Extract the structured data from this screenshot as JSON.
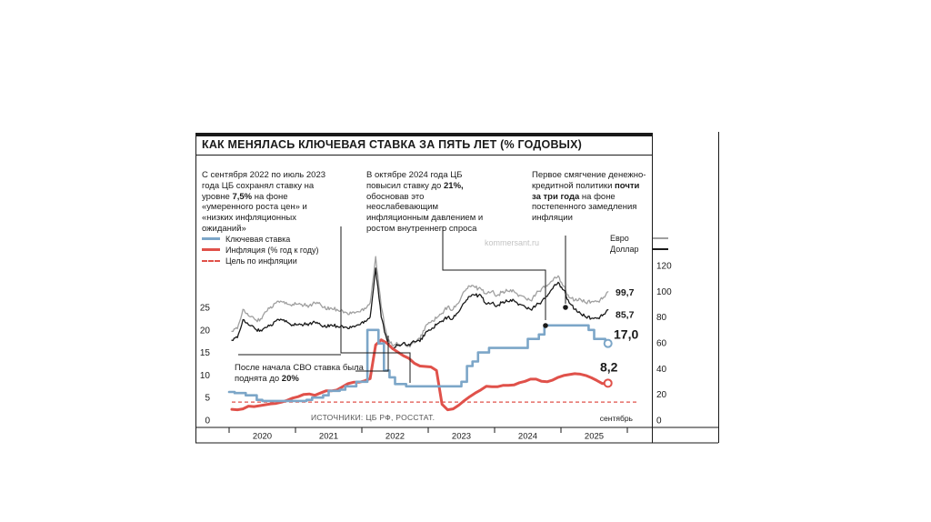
{
  "page": {
    "watermark": "kommersant.ru"
  },
  "header": {
    "title": "КАК МЕНЯЛАСЬ КЛЮЧЕВАЯ СТАВКА ЗА ПЯТЬ ЛЕТ (% ГОДОВЫХ)"
  },
  "annotations": {
    "note1": [
      {
        "t": "С сентября 2022 по июль 2023 года ЦБ сохранял ставку на уровне ",
        "b": false
      },
      {
        "t": "7,5%",
        "b": true
      },
      {
        "t": " на фоне «умеренного роста цен» и «низких инфляционных ожиданий»",
        "b": false
      }
    ],
    "note2": [
      {
        "t": "В октябре 2024 года ЦБ повысил ставку до ",
        "b": false
      },
      {
        "t": "21%,",
        "b": true
      },
      {
        "t": " обосновав это неослабевающим инфляционным давлением и ростом внутреннего спроса",
        "b": false
      }
    ],
    "note3": [
      {
        "t": "Первое смягчение денежно-кредитной политики ",
        "b": false
      },
      {
        "t": "почти за три года",
        "b": true
      },
      {
        "t": " на фоне постепенного замедления инфляции",
        "b": false
      }
    ],
    "svo_note": [
      {
        "t": "После начала СВО ставка была поднята до ",
        "b": false
      },
      {
        "t": "20%",
        "b": true
      }
    ]
  },
  "legend": {
    "items": [
      {
        "label": "Ключевая ставка",
        "color": "#7ca6c8",
        "style": "solid"
      },
      {
        "label": "Инфляция (% год к году)",
        "color": "#e0514a",
        "style": "solid"
      },
      {
        "label": "Цель по инфляции",
        "color": "#e0514a",
        "style": "dashed"
      }
    ],
    "currency": [
      {
        "label": "Евро",
        "color": "#a0a0a0"
      },
      {
        "label": "Доллар",
        "color": "#1a1a1a"
      }
    ]
  },
  "sources": "ИСТОЧНИКИ:  ЦБ РФ, РОССТАТ.",
  "end_labels": {
    "euro": "99,7",
    "dollar": "85,7",
    "key_rate": "17,0",
    "inflation": "8,2",
    "month": "сентябрь"
  },
  "chart_data": {
    "type": "line",
    "title": "КАК МЕНЯЛАСЬ КЛЮЧЕВАЯ СТАВКА ЗА ПЯТЬ ЛЕТ (% ГОДОВЫХ)",
    "x_unit": "month, Jan 2020 — Sep 2025",
    "x_ticks": [
      "2020",
      "2021",
      "2022",
      "2023",
      "2024",
      "2025"
    ],
    "left_axis": {
      "ticks": [
        0,
        5,
        10,
        15,
        20,
        25
      ],
      "max": 25
    },
    "right_axis": {
      "ticks": [
        0,
        20,
        40,
        60,
        80,
        100,
        120
      ],
      "max": 120
    },
    "target_line": {
      "label": "Цель по инфляции",
      "value": 4,
      "axis": "left"
    },
    "series": [
      {
        "name": "Евро",
        "axis": "right",
        "style": "noisy",
        "color": "#a0a0a0",
        "width": 1.3,
        "jitter": 1.6,
        "values": [
          69,
          71,
          86,
          81,
          79,
          77,
          84,
          88,
          91,
          92,
          90,
          90,
          90,
          89,
          89,
          91,
          90,
          86,
          87,
          86,
          85,
          82,
          84,
          84,
          87,
          91,
          127,
          88,
          66,
          58,
          59,
          60,
          58,
          60,
          63,
          73,
          76,
          79,
          83,
          88,
          86,
          91,
          100,
          104,
          103,
          102,
          98,
          100,
          97,
          100,
          100,
          100,
          97,
          95,
          93,
          98,
          102,
          104,
          108,
          112,
          104,
          95,
          93,
          94,
          91,
          92,
          92,
          94,
          99.7
        ]
      },
      {
        "name": "Доллар",
        "axis": "right",
        "style": "noisy",
        "color": "#1a1a1a",
        "width": 1.3,
        "jitter": 1.4,
        "values": [
          62,
          64,
          78,
          74,
          72,
          69,
          72,
          74,
          77,
          78,
          76,
          74,
          74,
          74,
          75,
          76,
          74,
          72,
          74,
          73,
          73,
          71,
          73,
          74,
          77,
          80,
          118,
          80,
          63,
          55,
          58,
          60,
          59,
          61,
          61,
          68,
          70,
          74,
          77,
          80,
          79,
          84,
          91,
          96,
          97,
          97,
          90,
          91,
          89,
          92,
          92,
          93,
          90,
          88,
          86,
          89,
          92,
          96,
          102,
          107,
          101,
          91,
          86,
          83,
          80,
          79,
          79,
          81,
          85.7
        ]
      },
      {
        "name": "Инфляция (% год к году)",
        "axis": "left",
        "style": "line",
        "color": "#e0514a",
        "width": 3,
        "values": [
          2.4,
          2.3,
          2.5,
          3.1,
          3,
          3.2,
          3.4,
          3.6,
          3.7,
          4,
          4.4,
          4.9,
          5.2,
          5.7,
          5.8,
          5.5,
          6,
          6.5,
          6.5,
          6.7,
          7.4,
          8.1,
          8.4,
          8.4,
          8.7,
          9.2,
          16.7,
          17.8,
          17.1,
          15.9,
          15.1,
          14.3,
          13.7,
          12.6,
          12,
          11.9,
          11.8,
          11,
          3.5,
          2.3,
          2.5,
          3.3,
          4.3,
          5.2,
          6,
          6.7,
          7.5,
          7.4,
          7.4,
          7.7,
          7.7,
          7.8,
          8.3,
          8.6,
          9.1,
          9.1,
          8.6,
          8.5,
          8.9,
          9.5,
          9.9,
          10.1,
          10.3,
          10.2,
          9.9,
          9.4,
          8.8,
          8.1,
          8.2
        ]
      },
      {
        "name": "Ключевая ставка",
        "axis": "left",
        "style": "step",
        "color": "#7ca6c8",
        "width": 2.6,
        "values": [
          6.25,
          6,
          6,
          5.5,
          5.5,
          4.5,
          4.25,
          4.25,
          4.25,
          4.25,
          4.25,
          4.25,
          4.25,
          4.25,
          4.5,
          5,
          5,
          5.5,
          6.5,
          6.5,
          6.75,
          7.5,
          7.5,
          8.5,
          8.5,
          20,
          20,
          17,
          11,
          9.5,
          8,
          8,
          7.5,
          7.5,
          7.5,
          7.5,
          7.5,
          7.5,
          7.5,
          7.5,
          7.5,
          7.5,
          8.5,
          12,
          13,
          15,
          15,
          16,
          16,
          16,
          16,
          16,
          16,
          16,
          18,
          18,
          19,
          21,
          21,
          21,
          21,
          21,
          21,
          21,
          21,
          20,
          18,
          18,
          17
        ]
      }
    ],
    "end_values": {
      "euro": 99.7,
      "dollar": 85.7,
      "key_rate": 17.0,
      "inflation": 8.2
    }
  }
}
